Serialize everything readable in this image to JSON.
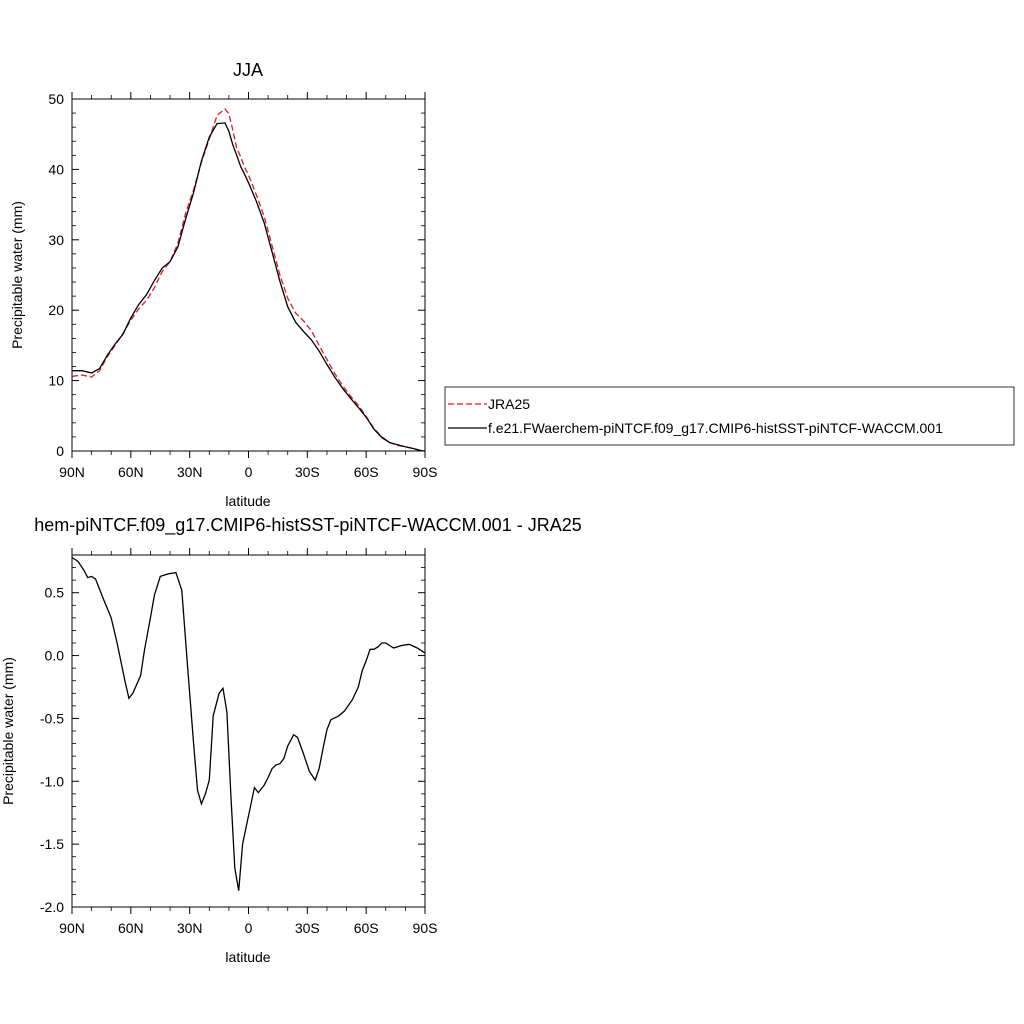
{
  "chart_data": [
    {
      "type": "line",
      "title": "JJA",
      "xlabel": "latitude",
      "ylabel": "Precipitable water (mm)",
      "xlim": [
        90,
        -90
      ],
      "ylim": [
        0,
        50
      ],
      "x_ticks": [
        {
          "value": 90,
          "label": "90N"
        },
        {
          "value": 60,
          "label": "60N"
        },
        {
          "value": 30,
          "label": "30N"
        },
        {
          "value": 0,
          "label": "0"
        },
        {
          "value": -30,
          "label": "30S"
        },
        {
          "value": -60,
          "label": "60S"
        },
        {
          "value": -90,
          "label": "90S"
        }
      ],
      "y_ticks": [
        {
          "value": 0,
          "label": "0"
        },
        {
          "value": 10,
          "label": "10"
        },
        {
          "value": 20,
          "label": "20"
        },
        {
          "value": 30,
          "label": "30"
        },
        {
          "value": 40,
          "label": "40"
        },
        {
          "value": 50,
          "label": "50"
        }
      ],
      "legend": {
        "placement": "right"
      },
      "series": [
        {
          "name": "JRA25",
          "color": "#e41a1c",
          "dash": true,
          "x": [
            90,
            85,
            80,
            76,
            72,
            68,
            64,
            60,
            56,
            52,
            48,
            44,
            40,
            36,
            32,
            28,
            24,
            20,
            16,
            12,
            10,
            8,
            6,
            4,
            2,
            0,
            -4,
            -8,
            -12,
            -16,
            -20,
            -24,
            -28,
            -32,
            -36,
            -40,
            -44,
            -48,
            -52,
            -56,
            -60,
            -64,
            -68,
            -72,
            -76,
            -80,
            -84,
            -88,
            -90
          ],
          "y": [
            10.6,
            10.8,
            10.5,
            11.4,
            13.4,
            15.0,
            16.7,
            18.6,
            20.2,
            21.4,
            23.2,
            25.5,
            26.9,
            29.5,
            33.8,
            37.1,
            41.0,
            44.3,
            47.7,
            48.6,
            47.9,
            45.6,
            43.0,
            41.8,
            40.3,
            39.2,
            36.4,
            33.3,
            29.2,
            25.0,
            21.7,
            19.6,
            18.5,
            17.1,
            15.0,
            13.0,
            11.0,
            9.3,
            7.8,
            6.5,
            4.9,
            3.2,
            2.0,
            1.2,
            0.8,
            0.6,
            0.35,
            0.05,
            0.0
          ]
        },
        {
          "name": "f.e21.FWaerchem-piNTCF.f09_g17.CMIP6-histSST-piNTCF-WACCM.001",
          "color": "#000000",
          "dash": false,
          "x": [
            90,
            85,
            80,
            76,
            72,
            68,
            64,
            60,
            56,
            52,
            48,
            44,
            40,
            36,
            32,
            28,
            24,
            20,
            16,
            12,
            10,
            8,
            6,
            4,
            2,
            0,
            -4,
            -8,
            -12,
            -16,
            -20,
            -24,
            -28,
            -32,
            -36,
            -40,
            -44,
            -48,
            -52,
            -56,
            -60,
            -64,
            -68,
            -72,
            -76,
            -80,
            -84,
            -88,
            -90
          ],
          "y": [
            11.4,
            11.4,
            11.1,
            11.7,
            13.6,
            15.2,
            16.6,
            18.9,
            20.8,
            22.2,
            24.2,
            26.0,
            26.9,
            29.0,
            33.0,
            36.7,
            41.2,
            44.6,
            46.5,
            46.6,
            45.4,
            43.5,
            42.0,
            40.4,
            39.3,
            38.1,
            35.5,
            32.4,
            28.3,
            24.1,
            20.5,
            18.3,
            17.0,
            15.8,
            14.2,
            12.3,
            10.5,
            8.9,
            7.5,
            6.2,
            4.8,
            3.1,
            1.9,
            1.2,
            0.9,
            0.6,
            0.35,
            0.05,
            0.0
          ]
        }
      ]
    },
    {
      "type": "line",
      "title": "hem-piNTCF.f09_g17.CMIP6-histSST-piNTCF-WACCM.001 - JRA25",
      "xlabel": "latitude",
      "ylabel": "Precipitable water (mm)",
      "xlim": [
        90,
        -90
      ],
      "ylim": [
        -2.0,
        0.8
      ],
      "x_ticks": [
        {
          "value": 90,
          "label": "90N"
        },
        {
          "value": 60,
          "label": "60N"
        },
        {
          "value": 30,
          "label": "30N"
        },
        {
          "value": 0,
          "label": "0"
        },
        {
          "value": -30,
          "label": "30S"
        },
        {
          "value": -60,
          "label": "60S"
        },
        {
          "value": -90,
          "label": "90S"
        }
      ],
      "y_ticks": [
        {
          "value": -2.0,
          "label": "-2.0"
        },
        {
          "value": -1.5,
          "label": "-1.5"
        },
        {
          "value": -1.0,
          "label": "-1.0"
        },
        {
          "value": -0.5,
          "label": "-0.5"
        },
        {
          "value": 0.0,
          "label": "0.0"
        },
        {
          "value": 0.5,
          "label": "0.5"
        }
      ],
      "series": [
        {
          "color": "#000000",
          "dash": false,
          "x": [
            90,
            87,
            84,
            82,
            80,
            78,
            74,
            70,
            67,
            65,
            63,
            61,
            59,
            55,
            53,
            50,
            48,
            45,
            43,
            41,
            37,
            34,
            31,
            28,
            26,
            24,
            22,
            20,
            18,
            15,
            13,
            11,
            9,
            7,
            5,
            3,
            1,
            -1,
            -3,
            -5,
            -8,
            -10,
            -12,
            -14,
            -16,
            -18,
            -20,
            -23,
            -25,
            -28,
            -31,
            -34,
            -36,
            -38,
            -40,
            -42,
            -46,
            -49,
            -53,
            -56,
            -58,
            -60,
            -62,
            -64,
            -66,
            -68,
            -70,
            -74,
            -78,
            -82,
            -86,
            -90
          ],
          "y": [
            0.78,
            0.75,
            0.68,
            0.62,
            0.63,
            0.61,
            0.45,
            0.3,
            0.1,
            -0.05,
            -0.2,
            -0.34,
            -0.3,
            -0.16,
            0.05,
            0.3,
            0.48,
            0.63,
            0.64,
            0.65,
            0.66,
            0.52,
            -0.1,
            -0.7,
            -1.07,
            -1.18,
            -1.1,
            -0.99,
            -0.48,
            -0.3,
            -0.26,
            -0.45,
            -1.1,
            -1.69,
            -1.87,
            -1.5,
            -1.35,
            -1.2,
            -1.05,
            -1.09,
            -1.03,
            -0.97,
            -0.9,
            -0.87,
            -0.86,
            -0.82,
            -0.72,
            -0.63,
            -0.65,
            -0.78,
            -0.92,
            -0.99,
            -0.9,
            -0.74,
            -0.59,
            -0.51,
            -0.48,
            -0.44,
            -0.35,
            -0.25,
            -0.12,
            -0.04,
            0.05,
            0.05,
            0.07,
            0.1,
            0.1,
            0.06,
            0.08,
            0.09,
            0.06,
            0.02
          ]
        }
      ]
    }
  ]
}
